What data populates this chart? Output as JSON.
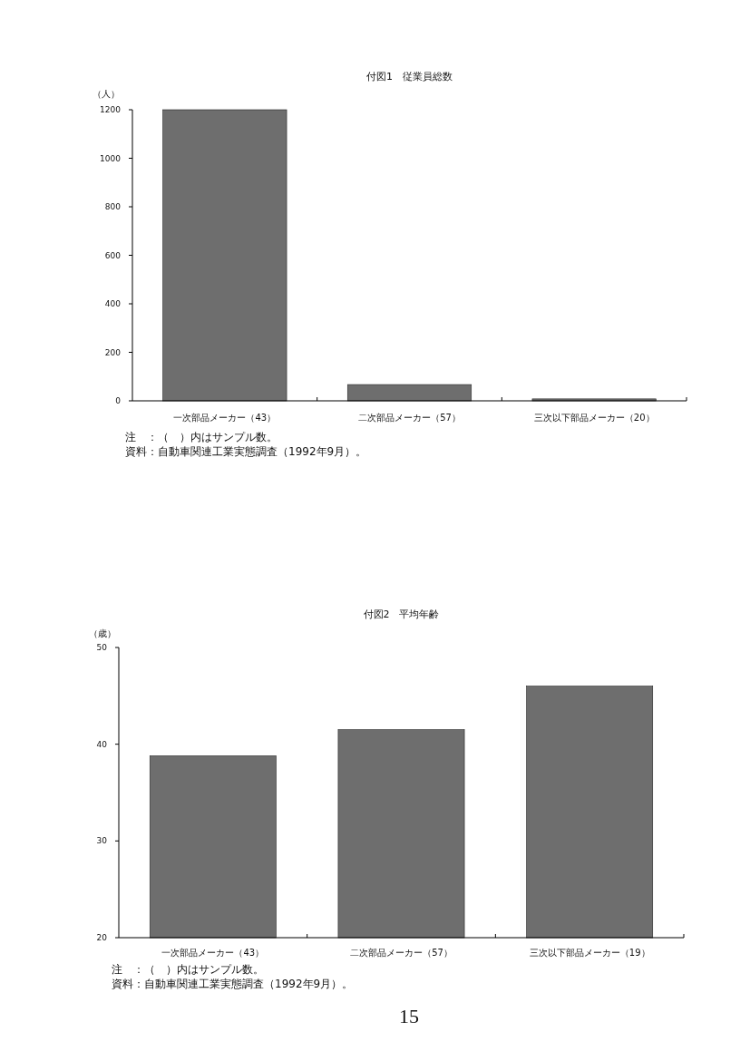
{
  "chart_data": [
    {
      "type": "bar",
      "title": "付図1　従業員総数",
      "ylabel": "（人）",
      "categories": [
        "一次部品メーカー（43）",
        "二次部品メーカー（57）",
        "三次以下部品メーカー（20）"
      ],
      "values": [
        1200,
        67,
        8
      ],
      "color": "#6e6e6e",
      "ylim": [
        0,
        1200
      ],
      "yticks": [
        0,
        200,
        400,
        600,
        800,
        1000,
        1200
      ],
      "annotations": [
        "注　：（　）内はサンプル数。",
        "資料：自動車関連工業実態調査（1992年9月）。"
      ]
    },
    {
      "type": "bar",
      "title": "付図2　平均年齢",
      "ylabel": "（歳）",
      "categories": [
        "一次部品メーカー（43）",
        "二次部品メーカー（57）",
        "三次以下部品メーカー（19）"
      ],
      "values": [
        38.8,
        41.5,
        46.0
      ],
      "color": "#6e6e6e",
      "ylim": [
        20,
        50
      ],
      "yticks": [
        20,
        30,
        40,
        50
      ],
      "annotations": [
        "注　：（　）内はサンプル数。",
        "資料：自動車関連工業実態調査（1992年9月）。",
        "15"
      ]
    }
  ]
}
